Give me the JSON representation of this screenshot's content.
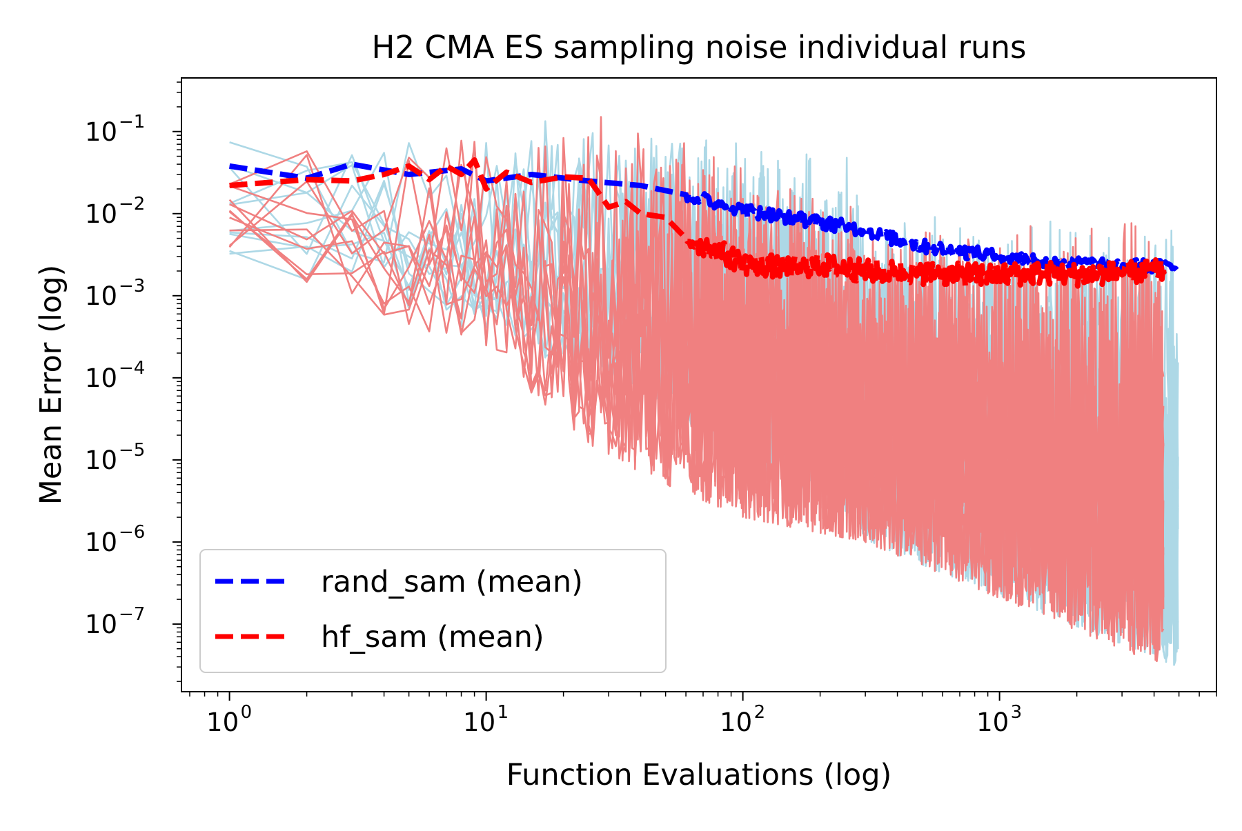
{
  "chart_data": {
    "type": "line",
    "title": "H2 CMA ES sampling noise individual runs",
    "xlabel": "Function Evaluations (log)",
    "ylabel": "Mean Error (log)",
    "xscale": "log",
    "yscale": "log",
    "xlim": [
      0.65,
      7000
    ],
    "ylim": [
      1.5e-08,
      0.45
    ],
    "x_ticks": [
      {
        "value": 1,
        "base": "10",
        "exp": "0"
      },
      {
        "value": 10,
        "base": "10",
        "exp": "1"
      },
      {
        "value": 100,
        "base": "10",
        "exp": "2"
      },
      {
        "value": 1000,
        "base": "10",
        "exp": "3"
      }
    ],
    "y_ticks": [
      {
        "value": 0.1,
        "base": "10",
        "exp": "−1"
      },
      {
        "value": 0.01,
        "base": "10",
        "exp": "−2"
      },
      {
        "value": 0.001,
        "base": "10",
        "exp": "−3"
      },
      {
        "value": 0.0001,
        "base": "10",
        "exp": "−4"
      },
      {
        "value": 1e-05,
        "base": "10",
        "exp": "−5"
      },
      {
        "value": 1e-06,
        "base": "10",
        "exp": "−6"
      },
      {
        "value": 1e-07,
        "base": "10",
        "exp": "−7"
      }
    ],
    "legend": {
      "location": "lower-left",
      "entries": [
        {
          "label": "rand_sam (mean)",
          "color": "#0000ff",
          "style": "dashed"
        },
        {
          "label": "hf_sam (mean)",
          "color": "#ff0000",
          "style": "dashed"
        }
      ]
    },
    "series": [
      {
        "name": "rand_sam (individual runs)",
        "color": "#add8e6",
        "runs": 10,
        "x_max": 5000,
        "envelope": [
          {
            "x": 1,
            "upper": 0.12,
            "lower": 0.003
          },
          {
            "x": 10,
            "upper": 0.2,
            "lower": 0.0003
          },
          {
            "x": 30,
            "upper": 0.17,
            "lower": 0.0001
          },
          {
            "x": 100,
            "upper": 0.1,
            "lower": 1e-05
          },
          {
            "x": 280,
            "upper": 0.05,
            "lower": 2e-06
          },
          {
            "x": 300,
            "upper": 0.01,
            "lower": 1e-06
          },
          {
            "x": 5000,
            "upper": 0.008,
            "lower": 3e-08
          }
        ]
      },
      {
        "name": "hf_sam (individual runs)",
        "color": "#f08080",
        "runs": 10,
        "x_max": 4400,
        "envelope": [
          {
            "x": 1,
            "upper": 0.06,
            "lower": 0.003
          },
          {
            "x": 10,
            "upper": 0.16,
            "lower": 0.0002
          },
          {
            "x": 30,
            "upper": 0.15,
            "lower": 1e-05
          },
          {
            "x": 100,
            "upper": 0.05,
            "lower": 2e-06
          },
          {
            "x": 300,
            "upper": 0.01,
            "lower": 1e-06
          },
          {
            "x": 4400,
            "upper": 0.008,
            "lower": 3e-08
          }
        ]
      },
      {
        "name": "rand_sam (mean)",
        "color": "#0000ff",
        "style": "dashed",
        "x": [
          1,
          2,
          3,
          5,
          8,
          10,
          15,
          25,
          40,
          60,
          100,
          150,
          250,
          500,
          1000,
          2000,
          5000
        ],
        "y": [
          0.038,
          0.027,
          0.04,
          0.03,
          0.035,
          0.025,
          0.03,
          0.025,
          0.022,
          0.017,
          0.011,
          0.009,
          0.007,
          0.004,
          0.003,
          0.0025,
          0.0022
        ]
      },
      {
        "name": "hf_sam (mean)",
        "color": "#ff0000",
        "style": "dashed",
        "x": [
          1,
          2,
          3,
          4,
          5,
          6,
          7,
          8,
          9,
          10,
          12,
          15,
          20,
          25,
          30,
          35,
          40,
          50,
          60,
          80,
          100,
          150,
          200,
          300,
          500,
          700,
          1000,
          1500,
          2000,
          3000,
          4400
        ],
        "y": [
          0.022,
          0.026,
          0.025,
          0.03,
          0.038,
          0.026,
          0.038,
          0.03,
          0.045,
          0.02,
          0.032,
          0.024,
          0.028,
          0.027,
          0.012,
          0.014,
          0.01,
          0.009,
          0.005,
          0.0035,
          0.0025,
          0.0022,
          0.0024,
          0.002,
          0.0019,
          0.0018,
          0.0018,
          0.0019,
          0.0018,
          0.0019,
          0.002
        ]
      }
    ]
  }
}
